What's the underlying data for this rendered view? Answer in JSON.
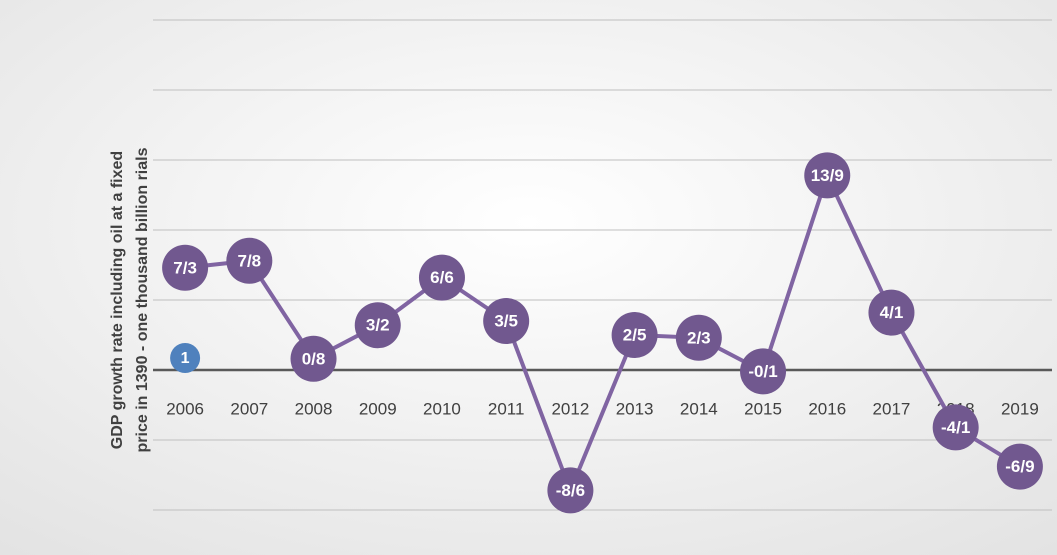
{
  "chart_data": {
    "type": "line",
    "ylabel": [
      "GDP growth rate including oil at a fixed",
      "price in 1390 - one thousand billion rials"
    ],
    "categories": [
      "2006",
      "2007",
      "2008",
      "2009",
      "2010",
      "2011",
      "2012",
      "2013",
      "2014",
      "2015",
      "2016",
      "2017",
      "2018",
      "2019"
    ],
    "series": [
      {
        "color": "#8064a2",
        "values": [
          7.3,
          7.8,
          0.8,
          3.2,
          6.6,
          3.5,
          -8.6,
          2.5,
          2.3,
          -0.1,
          13.9,
          4.1,
          -4.1,
          -6.9
        ],
        "value_labels": [
          "7/3",
          "7/8",
          "0/8",
          "3/2",
          "6/6",
          "3/5",
          "-8/6",
          "2/5",
          "2/3",
          "-0/1",
          "13/9",
          "4/1",
          "-4/1",
          "-6/9"
        ]
      }
    ],
    "annotations": [
      {
        "text": "1",
        "x": "2006",
        "y": 0,
        "color": "#4f81bd"
      }
    ],
    "ylim": [
      -10,
      25
    ],
    "yticks": [
      -10,
      -5,
      0,
      5,
      10,
      15,
      20,
      25
    ],
    "grid": true
  }
}
